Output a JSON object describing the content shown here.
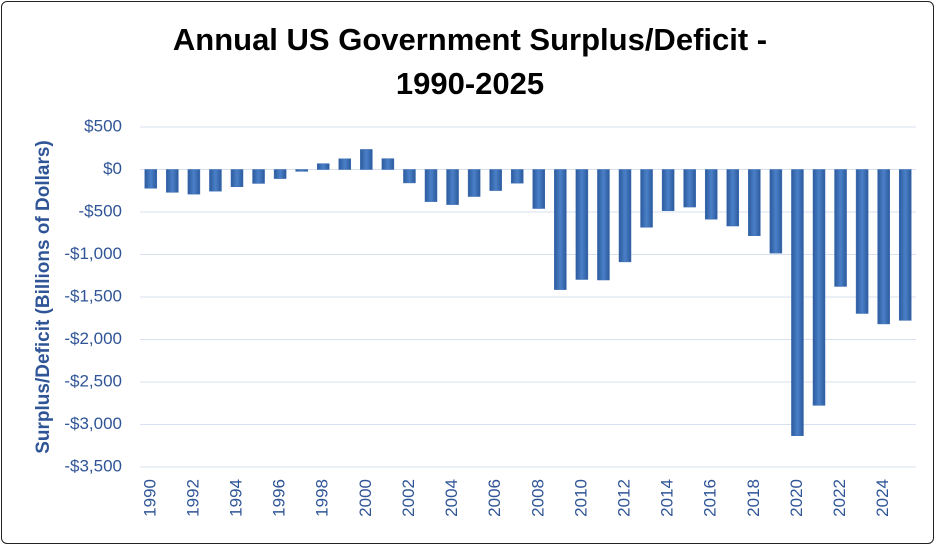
{
  "chart_data": {
    "type": "bar",
    "title": "Annual US Government Surplus/Deficit - 1990-2025",
    "y_label": "Surplus/Deficit (Billions of Dollars)",
    "categories": [
      1990,
      null,
      1992,
      null,
      1994,
      null,
      1996,
      null,
      1998,
      null,
      2000,
      null,
      2002,
      null,
      2004,
      null,
      2006,
      null,
      2008,
      null,
      2010,
      null,
      2012,
      null,
      2014,
      null,
      2016,
      null,
      2018,
      null,
      2020,
      null,
      2022,
      null,
      2024,
      null
    ],
    "values": [
      -221,
      -269,
      -290,
      -255,
      -203,
      -164,
      -107,
      -22,
      69,
      126,
      236,
      128,
      -158,
      -378,
      -413,
      -318,
      -248,
      -161,
      -459,
      -1413,
      -1294,
      -1300,
      -1087,
      -680,
      -485,
      -442,
      -585,
      -665,
      -779,
      -984,
      -3132,
      -2775,
      -1376,
      -1694,
      -1817,
      -1775
    ],
    "color": "#3b6db3",
    "ylim": [
      -3500,
      500
    ],
    "yticks": [
      {
        "value": 500,
        "label": "$500"
      },
      {
        "value": 0,
        "label": "$0"
      },
      {
        "value": -500,
        "label": "-$500"
      },
      {
        "value": -1000,
        "label": "-$1,000"
      },
      {
        "value": -1500,
        "label": "-$1,500"
      },
      {
        "value": -2000,
        "label": "-$2,000"
      },
      {
        "value": -2500,
        "label": "-$2,500"
      },
      {
        "value": -3000,
        "label": "-$3,000"
      },
      {
        "value": -3500,
        "label": "-$3,500"
      }
    ],
    "grid": true
  }
}
